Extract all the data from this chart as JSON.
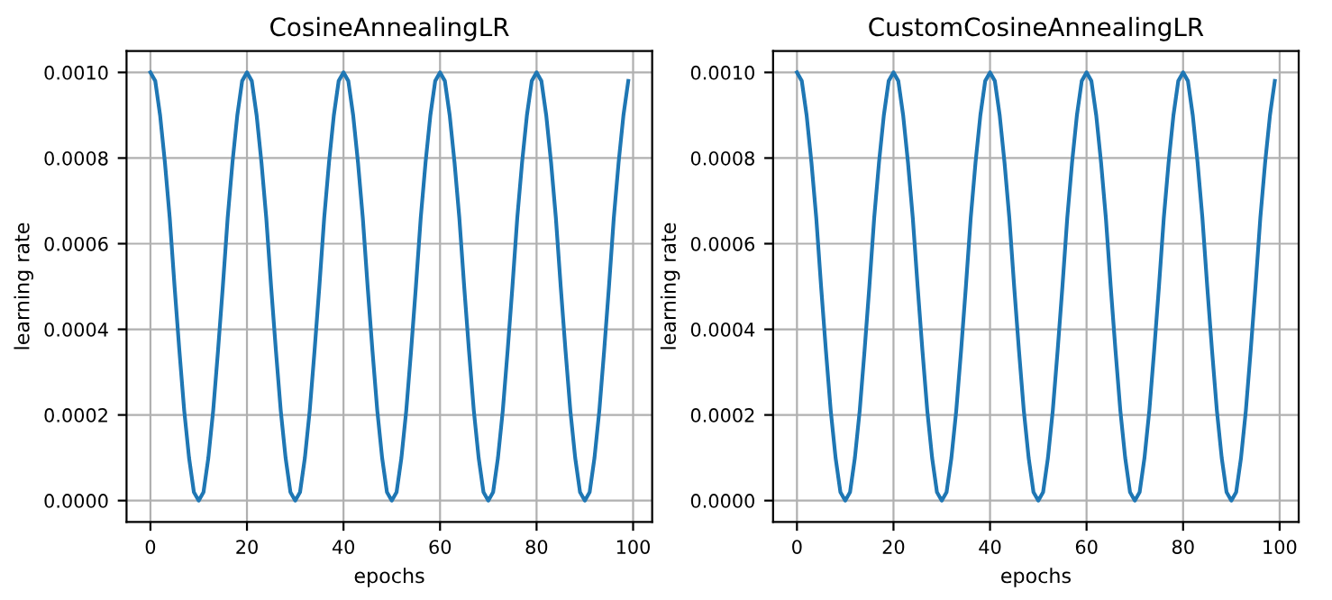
{
  "chart_data": [
    {
      "type": "line",
      "title": "CosineAnnealingLR",
      "xlabel": "epochs",
      "ylabel": "learning rate",
      "grid": true,
      "xlim": [
        -4.95,
        103.95
      ],
      "ylim": [
        -5e-05,
        0.00105
      ],
      "xticks": [
        0,
        20,
        40,
        60,
        80,
        100
      ],
      "yticks": [
        {
          "value": 0,
          "label": "0.0000"
        },
        {
          "value": 0.0002,
          "label": "0.0002"
        },
        {
          "value": 0.0004,
          "label": "0.0004"
        },
        {
          "value": 0.0006,
          "label": "0.0006"
        },
        {
          "value": 0.0008,
          "label": "0.0008"
        },
        {
          "value": 0.001,
          "label": "0.0010"
        }
      ],
      "series": [
        {
          "color": "#1f77b4",
          "x": [
            0,
            1,
            2,
            3,
            4,
            5,
            6,
            7,
            8,
            9,
            10,
            11,
            12,
            13,
            14,
            15,
            16,
            17,
            18,
            19,
            20,
            21,
            22,
            23,
            24,
            25,
            26,
            27,
            28,
            29,
            30,
            31,
            32,
            33,
            34,
            35,
            36,
            37,
            38,
            39,
            40,
            41,
            42,
            43,
            44,
            45,
            46,
            47,
            48,
            49,
            50,
            51,
            52,
            53,
            54,
            55,
            56,
            57,
            58,
            59,
            60,
            61,
            62,
            63,
            64,
            65,
            66,
            67,
            68,
            69,
            70,
            71,
            72,
            73,
            74,
            75,
            76,
            77,
            78,
            79,
            80,
            81,
            82,
            83,
            84,
            85,
            86,
            87,
            88,
            89,
            90,
            91,
            92,
            93,
            94,
            95,
            96,
            97,
            98,
            99
          ],
          "values": [
            0.001,
            0.00098,
            0.0009,
            0.00079,
            0.00066,
            0.0005,
            0.00035,
            0.00021,
            0.0001,
            2e-05,
            0,
            2e-05,
            0.0001,
            0.00021,
            0.00035,
            0.0005,
            0.00066,
            0.00079,
            0.0009,
            0.00098,
            0.001,
            0.00098,
            0.0009,
            0.00079,
            0.00066,
            0.0005,
            0.00035,
            0.00021,
            0.0001,
            2e-05,
            0,
            2e-05,
            0.0001,
            0.00021,
            0.00035,
            0.0005,
            0.00066,
            0.00079,
            0.0009,
            0.00098,
            0.001,
            0.00098,
            0.0009,
            0.00079,
            0.00066,
            0.0005,
            0.00035,
            0.00021,
            0.0001,
            2e-05,
            0,
            2e-05,
            0.0001,
            0.00021,
            0.00035,
            0.0005,
            0.00066,
            0.00079,
            0.0009,
            0.00098,
            0.001,
            0.00098,
            0.0009,
            0.00079,
            0.00066,
            0.0005,
            0.00035,
            0.00021,
            0.0001,
            2e-05,
            0,
            2e-05,
            0.0001,
            0.00021,
            0.00035,
            0.0005,
            0.00066,
            0.00079,
            0.0009,
            0.00098,
            0.001,
            0.00098,
            0.0009,
            0.00079,
            0.00066,
            0.0005,
            0.00035,
            0.00021,
            0.0001,
            2e-05,
            0,
            2e-05,
            0.0001,
            0.00021,
            0.00035,
            0.0005,
            0.00066,
            0.00079,
            0.0009,
            0.00098
          ]
        }
      ]
    },
    {
      "type": "line",
      "title": "CustomCosineAnnealingLR",
      "xlabel": "epochs",
      "ylabel": "learning rate",
      "grid": true,
      "xlim": [
        -4.95,
        103.95
      ],
      "ylim": [
        -5e-05,
        0.00105
      ],
      "xticks": [
        0,
        20,
        40,
        60,
        80,
        100
      ],
      "yticks": [
        {
          "value": 0,
          "label": "0.0000"
        },
        {
          "value": 0.0002,
          "label": "0.0002"
        },
        {
          "value": 0.0004,
          "label": "0.0004"
        },
        {
          "value": 0.0006,
          "label": "0.0006"
        },
        {
          "value": 0.0008,
          "label": "0.0008"
        },
        {
          "value": 0.001,
          "label": "0.0010"
        }
      ],
      "series": [
        {
          "color": "#1f77b4",
          "x": [
            0,
            1,
            2,
            3,
            4,
            5,
            6,
            7,
            8,
            9,
            10,
            11,
            12,
            13,
            14,
            15,
            16,
            17,
            18,
            19,
            20,
            21,
            22,
            23,
            24,
            25,
            26,
            27,
            28,
            29,
            30,
            31,
            32,
            33,
            34,
            35,
            36,
            37,
            38,
            39,
            40,
            41,
            42,
            43,
            44,
            45,
            46,
            47,
            48,
            49,
            50,
            51,
            52,
            53,
            54,
            55,
            56,
            57,
            58,
            59,
            60,
            61,
            62,
            63,
            64,
            65,
            66,
            67,
            68,
            69,
            70,
            71,
            72,
            73,
            74,
            75,
            76,
            77,
            78,
            79,
            80,
            81,
            82,
            83,
            84,
            85,
            86,
            87,
            88,
            89,
            90,
            91,
            92,
            93,
            94,
            95,
            96,
            97,
            98,
            99
          ],
          "values": [
            0.001,
            0.00098,
            0.0009,
            0.00079,
            0.00066,
            0.0005,
            0.00035,
            0.00021,
            0.0001,
            2e-05,
            0,
            2e-05,
            0.0001,
            0.00021,
            0.00035,
            0.0005,
            0.00066,
            0.00079,
            0.0009,
            0.00098,
            0.001,
            0.00098,
            0.0009,
            0.00079,
            0.00066,
            0.0005,
            0.00035,
            0.00021,
            0.0001,
            2e-05,
            0,
            2e-05,
            0.0001,
            0.00021,
            0.00035,
            0.0005,
            0.00066,
            0.00079,
            0.0009,
            0.00098,
            0.001,
            0.00098,
            0.0009,
            0.00079,
            0.00066,
            0.0005,
            0.00035,
            0.00021,
            0.0001,
            2e-05,
            0,
            2e-05,
            0.0001,
            0.00021,
            0.00035,
            0.0005,
            0.00066,
            0.00079,
            0.0009,
            0.00098,
            0.001,
            0.00098,
            0.0009,
            0.00079,
            0.00066,
            0.0005,
            0.00035,
            0.00021,
            0.0001,
            2e-05,
            0,
            2e-05,
            0.0001,
            0.00021,
            0.00035,
            0.0005,
            0.00066,
            0.00079,
            0.0009,
            0.00098,
            0.001,
            0.00098,
            0.0009,
            0.00079,
            0.00066,
            0.0005,
            0.00035,
            0.00021,
            0.0001,
            2e-05,
            0,
            2e-05,
            0.0001,
            0.00021,
            0.00035,
            0.0005,
            0.00066,
            0.00079,
            0.0009,
            0.00098
          ]
        }
      ]
    }
  ]
}
